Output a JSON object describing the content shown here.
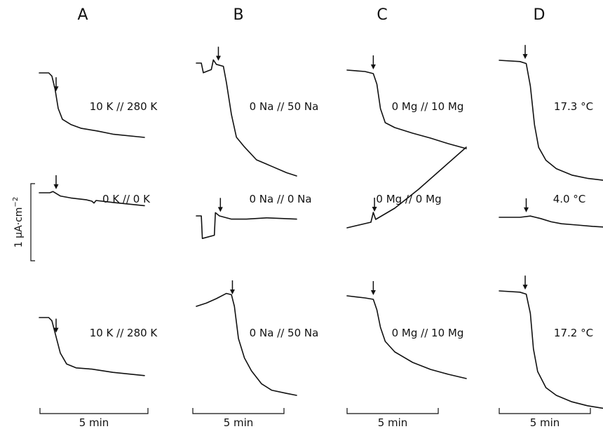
{
  "chart_data": {
    "type": "line",
    "columns": [
      {
        "label": "A",
        "time_scale_label": "5 min",
        "panels": [
          {
            "condition": "10 K // 280 K",
            "trace": [
              [
                0,
                0
              ],
              [
                0.09,
                0
              ],
              [
                0.12,
                -0.05
              ],
              [
                0.15,
                -0.25
              ],
              [
                0.18,
                -0.55
              ],
              [
                0.22,
                -0.72
              ],
              [
                0.3,
                -0.8
              ],
              [
                0.4,
                -0.86
              ],
              [
                0.55,
                -0.9
              ],
              [
                0.7,
                -0.95
              ],
              [
                1.0,
                -1.0
              ]
            ]
          },
          {
            "condition": "0 K // 0 K",
            "trace": [
              [
                0,
                0
              ],
              [
                0.1,
                0
              ],
              [
                0.13,
                0.02
              ],
              [
                0.2,
                -0.05
              ],
              [
                0.3,
                -0.08
              ],
              [
                0.45,
                -0.11
              ],
              [
                0.5,
                -0.13
              ],
              [
                0.52,
                -0.16
              ],
              [
                0.54,
                -0.12
              ],
              [
                0.7,
                -0.15
              ],
              [
                1.0,
                -0.2
              ]
            ]
          },
          {
            "condition": "10 K // 280 K",
            "trace": [
              [
                0,
                0
              ],
              [
                0.09,
                0
              ],
              [
                0.12,
                -0.05
              ],
              [
                0.16,
                -0.3
              ],
              [
                0.2,
                -0.55
              ],
              [
                0.26,
                -0.72
              ],
              [
                0.35,
                -0.78
              ],
              [
                0.5,
                -0.8
              ],
              [
                0.7,
                -0.85
              ],
              [
                1.0,
                -0.9
              ]
            ]
          }
        ]
      },
      {
        "label": "B",
        "time_scale_label": "5 min",
        "panels": [
          {
            "condition": "0 Na // 50 Na",
            "trace": [
              [
                0,
                0
              ],
              [
                0.05,
                0
              ],
              [
                0.07,
                -0.15
              ],
              [
                0.15,
                -0.1
              ],
              [
                0.17,
                0.05
              ],
              [
                0.2,
                -0.02
              ],
              [
                0.27,
                -0.05
              ],
              [
                0.3,
                -0.3
              ],
              [
                0.35,
                -0.8
              ],
              [
                0.4,
                -1.15
              ],
              [
                0.48,
                -1.3
              ],
              [
                0.6,
                -1.5
              ],
              [
                0.75,
                -1.6
              ],
              [
                0.9,
                -1.7
              ],
              [
                1.0,
                -1.75
              ]
            ]
          },
          {
            "condition": "0 Na // 0 Na",
            "trace": [
              [
                0,
                0
              ],
              [
                0.05,
                0
              ],
              [
                0.06,
                -0.35
              ],
              [
                0.18,
                -0.3
              ],
              [
                0.19,
                0.05
              ],
              [
                0.23,
                0.0
              ],
              [
                0.35,
                -0.05
              ],
              [
                0.5,
                -0.05
              ],
              [
                0.7,
                -0.03
              ],
              [
                1.0,
                -0.05
              ]
            ]
          },
          {
            "condition": "0 Na // 50 Na",
            "trace": [
              [
                0,
                0
              ],
              [
                0.1,
                0.05
              ],
              [
                0.2,
                0.12
              ],
              [
                0.3,
                0.2
              ],
              [
                0.35,
                0.18
              ],
              [
                0.38,
                0.0
              ],
              [
                0.42,
                -0.5
              ],
              [
                0.48,
                -0.8
              ],
              [
                0.55,
                -1.0
              ],
              [
                0.65,
                -1.2
              ],
              [
                0.75,
                -1.3
              ],
              [
                0.9,
                -1.35
              ],
              [
                1.0,
                -1.38
              ]
            ]
          }
        ]
      },
      {
        "label": "C",
        "time_scale_label": "5 min",
        "panels": [
          {
            "condition": "0 Mg // 10 Mg",
            "trace": [
              [
                0,
                0
              ],
              [
                0.15,
                -0.02
              ],
              [
                0.22,
                -0.05
              ],
              [
                0.25,
                -0.2
              ],
              [
                0.28,
                -0.55
              ],
              [
                0.32,
                -0.75
              ],
              [
                0.4,
                -0.82
              ],
              [
                0.55,
                -0.9
              ],
              [
                0.7,
                -0.97
              ],
              [
                0.85,
                -1.05
              ],
              [
                1.0,
                -1.12
              ]
            ]
          },
          {
            "condition": "0 Mg // 0 Mg",
            "trace": [
              [
                0,
                0
              ],
              [
                0.2,
                0.08
              ],
              [
                0.22,
                0.22
              ],
              [
                0.24,
                0.12
              ],
              [
                0.4,
                0.28
              ],
              [
                0.6,
                0.55
              ],
              [
                0.8,
                0.85
              ],
              [
                1.0,
                1.15
              ]
            ]
          },
          {
            "condition": "0 Mg // 10 Mg",
            "trace": [
              [
                0,
                0
              ],
              [
                0.15,
                -0.03
              ],
              [
                0.22,
                -0.05
              ],
              [
                0.25,
                -0.2
              ],
              [
                0.28,
                -0.45
              ],
              [
                0.32,
                -0.65
              ],
              [
                0.4,
                -0.8
              ],
              [
                0.55,
                -0.95
              ],
              [
                0.7,
                -1.05
              ],
              [
                0.85,
                -1.12
              ],
              [
                1.0,
                -1.18
              ]
            ]
          }
        ]
      },
      {
        "label": "D",
        "time_scale_label": "5 min",
        "panels": [
          {
            "condition": "17.3 °C",
            "trace": [
              [
                0,
                0
              ],
              [
                0.2,
                -0.02
              ],
              [
                0.26,
                -0.05
              ],
              [
                0.3,
                -0.4
              ],
              [
                0.34,
                -1.0
              ],
              [
                0.38,
                -1.35
              ],
              [
                0.45,
                -1.55
              ],
              [
                0.55,
                -1.68
              ],
              [
                0.7,
                -1.78
              ],
              [
                0.85,
                -1.83
              ],
              [
                1.0,
                -1.86
              ]
            ]
          },
          {
            "condition": "4.0 °C",
            "trace": [
              [
                0,
                0
              ],
              [
                0.2,
                0
              ],
              [
                0.3,
                0.02
              ],
              [
                0.4,
                -0.02
              ],
              [
                0.5,
                -0.07
              ],
              [
                0.6,
                -0.1
              ],
              [
                0.75,
                -0.12
              ],
              [
                0.9,
                -0.14
              ],
              [
                1.0,
                -0.15
              ]
            ]
          },
          {
            "condition": "17.2 °C",
            "trace": [
              [
                0,
                0
              ],
              [
                0.2,
                -0.02
              ],
              [
                0.26,
                -0.05
              ],
              [
                0.3,
                -0.35
              ],
              [
                0.33,
                -0.9
              ],
              [
                0.37,
                -1.25
              ],
              [
                0.45,
                -1.5
              ],
              [
                0.55,
                -1.62
              ],
              [
                0.7,
                -1.72
              ],
              [
                0.85,
                -1.78
              ],
              [
                1.0,
                -1.82
              ]
            ]
          }
        ]
      }
    ],
    "scale_bar_label": "1 μA·cm",
    "scale_bar_exponent": "−2"
  }
}
